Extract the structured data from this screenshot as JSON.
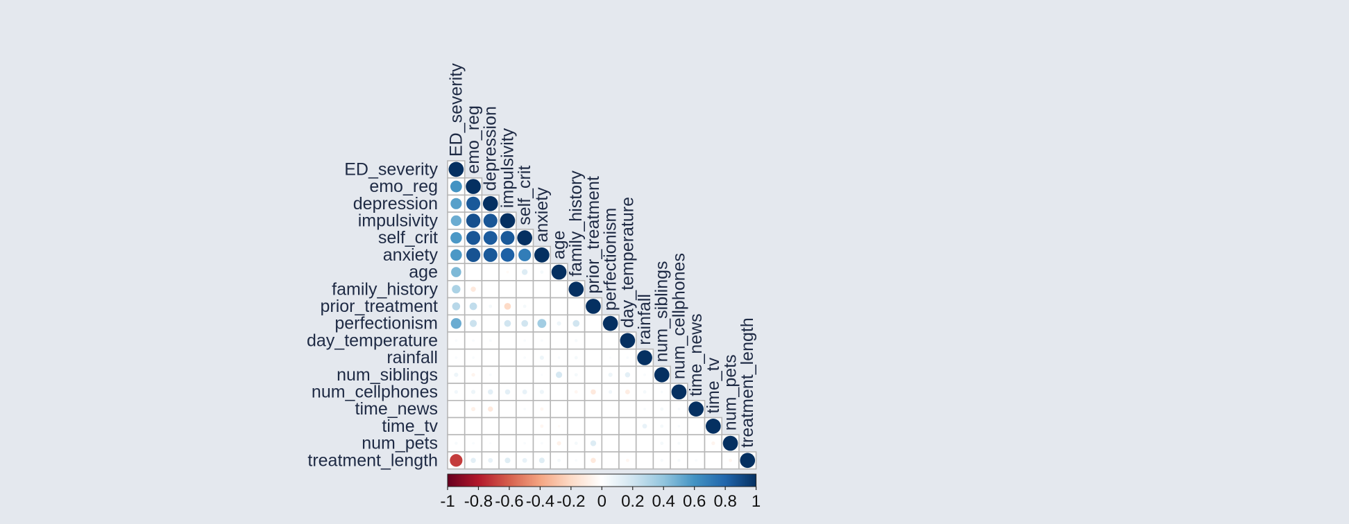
{
  "chart_data": {
    "type": "heatmap",
    "subtype": "correlation-lower-triangle-circles",
    "variables": [
      "ED_severity",
      "emo_reg",
      "depression",
      "impulsivity",
      "self_crit",
      "anxiety",
      "age",
      "family_history",
      "prior_treatment",
      "perfectionism",
      "day_temperature",
      "rainfall",
      "num_siblings",
      "num_cellphones",
      "time_news",
      "time_tv",
      "num_pets",
      "treatment_length"
    ],
    "rows": [
      [
        1
      ],
      [
        0.6,
        1
      ],
      [
        0.55,
        0.85,
        1
      ],
      [
        0.5,
        0.88,
        0.86,
        1
      ],
      [
        0.58,
        0.86,
        0.84,
        0.85,
        1
      ],
      [
        0.58,
        0.87,
        0.85,
        0.82,
        0.7,
        1
      ],
      [
        0.45,
        0,
        0,
        -0.03,
        0.15,
        0.05,
        1
      ],
      [
        0.32,
        -0.12,
        0,
        0,
        0,
        0,
        0,
        1
      ],
      [
        0.28,
        0.25,
        0.05,
        -0.2,
        0.05,
        0,
        0,
        0,
        1
      ],
      [
        0.5,
        0.22,
        0,
        0.2,
        0.2,
        0.35,
        0.08,
        0.2,
        0,
        1
      ],
      [
        0.03,
        0.03,
        0.03,
        0,
        0.03,
        0.03,
        0,
        0.04,
        0,
        0,
        1
      ],
      [
        0.03,
        0.03,
        0,
        0,
        0.03,
        0.08,
        0.03,
        0.05,
        0,
        0.02,
        0.03,
        1
      ],
      [
        0.08,
        -0.06,
        0.03,
        0,
        0,
        0.02,
        0.18,
        0.05,
        0,
        0.08,
        0.12,
        0.03,
        1
      ],
      [
        0.06,
        0.08,
        0.12,
        0.12,
        0.1,
        0.08,
        0,
        -0.05,
        -0.12,
        0.06,
        -0.1,
        0.05,
        0.03,
        1
      ],
      [
        0,
        -0.08,
        -0.12,
        0,
        0.03,
        -0.05,
        0,
        0,
        0,
        0,
        0,
        0.03,
        0.05,
        0.03,
        1
      ],
      [
        0,
        0,
        0,
        0,
        0,
        -0.05,
        -0.03,
        0,
        0,
        0,
        0,
        0.1,
        0.05,
        0.03,
        0,
        1
      ],
      [
        0.04,
        0.03,
        0.02,
        0,
        0.03,
        0.03,
        -0.08,
        0.05,
        0.15,
        0,
        0,
        0,
        0.05,
        0.04,
        0,
        -0.06,
        1
      ],
      [
        -0.7,
        0.12,
        0.1,
        0.14,
        0.1,
        0.14,
        0.05,
        0.03,
        -0.12,
        0,
        -0.05,
        0,
        0.04,
        0.04,
        0.03,
        0,
        -0.05,
        1
      ]
    ],
    "colorbar": {
      "range": [
        -1,
        1
      ],
      "ticks": [
        "-1",
        "-0.8",
        "-0.6",
        "-0.4",
        "-0.2",
        "0",
        "0.2",
        "0.4",
        "0.6",
        "0.8",
        "1"
      ],
      "stops": [
        "#67001f",
        "#b2182b",
        "#d6604d",
        "#f4a582",
        "#fddbc7",
        "#ffffff",
        "#d1e5f0",
        "#92c5de",
        "#4393c3",
        "#2166ac",
        "#053061"
      ]
    },
    "legend_placement": "bottom",
    "grid": true
  },
  "colors": {
    "background": "#e4e8ee",
    "grid": "#b7b7b7",
    "label": "#1e2a44"
  }
}
